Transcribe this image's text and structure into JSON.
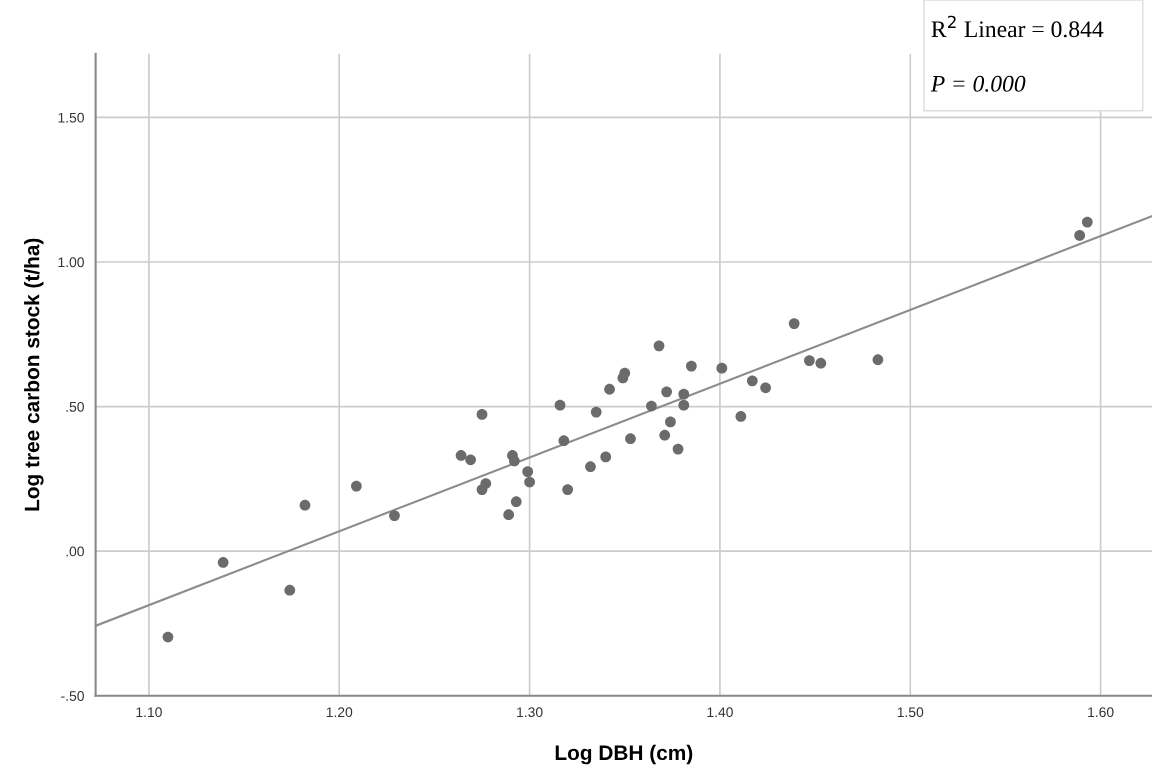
{
  "chart_data": {
    "type": "scatter",
    "xlabel": "Log DBH (cm)",
    "ylabel": "Log tree carbon stock (t/ha)",
    "annotations": [
      "R$^{2}$ Linear = 0.844",
      "P = 0.000"
    ],
    "xlim": [
      1.072,
      1.627
    ],
    "xticks": [
      {
        "value": 1.1,
        "label": "1.10"
      },
      {
        "value": 1.2,
        "label": "1.20"
      },
      {
        "value": 1.3,
        "label": "1.30"
      },
      {
        "value": 1.4,
        "label": "1.40"
      },
      {
        "value": 1.5,
        "label": "1.50"
      },
      {
        "value": 1.6,
        "label": "1.60"
      }
    ],
    "ylim": [
      -0.5,
      1.72
    ],
    "yticks": [
      {
        "value": -0.5,
        "label": "-.50"
      },
      {
        "value": 0,
        "label": ".00"
      },
      {
        "value": 0.5,
        "label": ".50"
      },
      {
        "value": 1.0,
        "label": "1.00"
      },
      {
        "value": 1.5,
        "label": "1.50"
      }
    ],
    "grid": true,
    "legend": false,
    "series": [
      {
        "marker": "circle",
        "color": "#6b6b6b",
        "x": [
          1.11,
          1.139,
          1.174,
          1.182,
          1.209,
          1.229,
          1.264,
          1.269,
          1.275,
          1.275,
          1.277,
          1.291,
          1.292,
          1.289,
          1.293,
          1.299,
          1.3,
          1.316,
          1.318,
          1.32,
          1.332,
          1.335,
          1.34,
          1.342,
          1.349,
          1.35,
          1.353,
          1.364,
          1.368,
          1.371,
          1.372,
          1.374,
          1.378,
          1.381,
          1.381,
          1.385,
          1.401,
          1.411,
          1.417,
          1.424,
          1.439,
          1.447,
          1.453,
          1.483,
          1.589,
          1.593
        ],
        "values": [
          -0.297,
          -0.039,
          -0.135,
          0.159,
          0.225,
          0.123,
          0.331,
          0.316,
          0.473,
          0.213,
          0.234,
          0.331,
          0.312,
          0.126,
          0.171,
          0.275,
          0.239,
          0.505,
          0.382,
          0.213,
          0.292,
          0.481,
          0.326,
          0.56,
          0.599,
          0.616,
          0.389,
          0.502,
          0.71,
          0.401,
          0.551,
          0.447,
          0.353,
          0.505,
          0.543,
          0.64,
          0.633,
          0.466,
          0.589,
          0.565,
          0.787,
          0.659,
          0.65,
          0.662,
          1.092,
          1.138
        ]
      },
      {
        "type": "line",
        "color": "#8c8c8c",
        "x": [
          1.072,
          1.627
        ],
        "values": [
          -0.258,
          1.159
        ]
      }
    ]
  }
}
